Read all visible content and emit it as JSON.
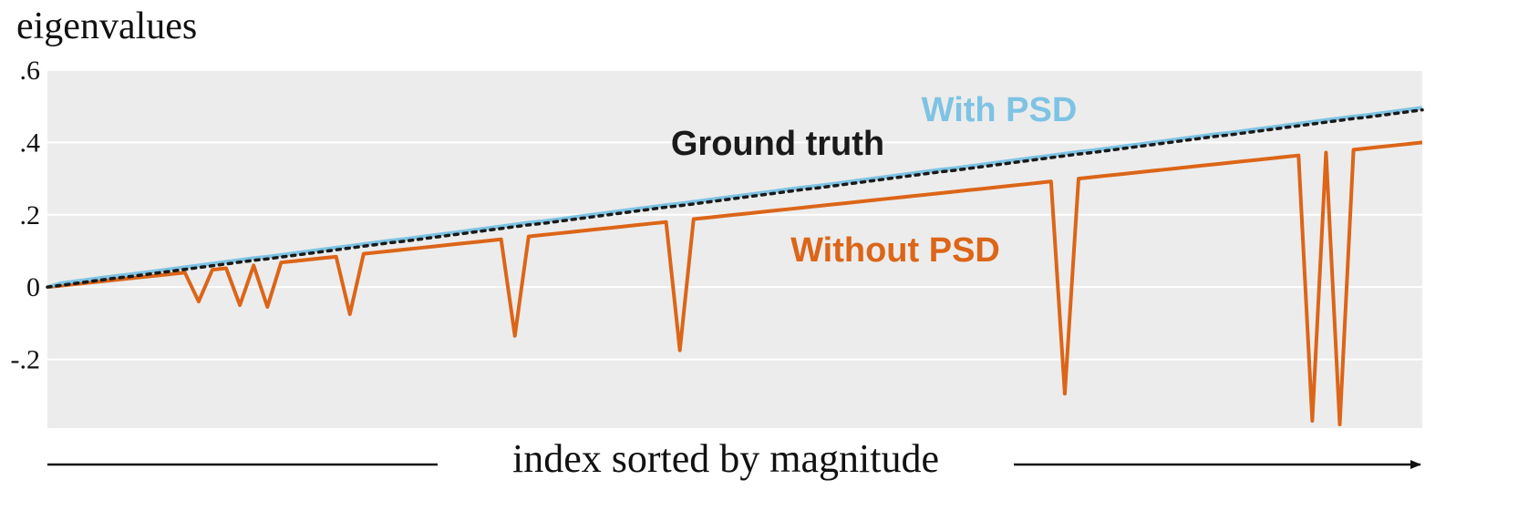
{
  "chart_data": {
    "type": "line",
    "ylabel": "eigenvalues",
    "xlabel": "index sorted by magnitude",
    "ylim": [
      -0.39,
      0.6
    ],
    "yticks": [
      {
        "value": 0.6,
        "label": ".6"
      },
      {
        "value": 0.4,
        "label": ".4"
      },
      {
        "value": 0.2,
        "label": ".2"
      },
      0,
      {
        "value": -0.2,
        "label": "-.2"
      }
    ],
    "grid": true,
    "series": [
      {
        "name": "Without PSD",
        "color": "#dc6518",
        "line_style": "solid",
        "values": [
          0,
          0.004,
          0.008,
          0.012,
          0.016,
          0.02,
          0.024,
          0.028,
          0.032,
          0.036,
          0.04,
          -0.04,
          0.048,
          0.052,
          -0.05,
          0.06,
          -0.055,
          0.068,
          0.072,
          0.076,
          0.08,
          0.084,
          -0.075,
          0.092,
          0.096,
          0.1,
          0.104,
          0.108,
          0.112,
          0.116,
          0.12,
          0.124,
          0.128,
          0.132,
          -0.135,
          0.14,
          0.144,
          0.148,
          0.152,
          0.156,
          0.16,
          0.164,
          0.168,
          0.172,
          0.176,
          0.18,
          -0.175,
          0.188,
          0.192,
          0.196,
          0.2,
          0.204,
          0.208,
          0.212,
          0.216,
          0.22,
          0.224,
          0.228,
          0.232,
          0.236,
          0.24,
          0.244,
          0.248,
          0.252,
          0.256,
          0.26,
          0.264,
          0.268,
          0.272,
          0.276,
          0.28,
          0.284,
          0.288,
          0.292,
          -0.295,
          0.3,
          0.304,
          0.308,
          0.312,
          0.316,
          0.32,
          0.324,
          0.328,
          0.332,
          0.336,
          0.34,
          0.344,
          0.348,
          0.352,
          0.356,
          0.36,
          0.364,
          -0.37,
          0.372,
          -0.38,
          0.38,
          0.384,
          0.388,
          0.392,
          0.396,
          0.4
        ]
      },
      {
        "name": "With PSD",
        "color": "#7ec3e3",
        "line_style": "solid",
        "values": [
          0,
          0.011,
          0.016,
          0.021,
          0.026,
          0.031,
          0.035,
          0.04,
          0.045,
          0.05,
          0.055,
          0.06,
          0.065,
          0.07,
          0.075,
          0.08,
          0.084,
          0.089,
          0.094,
          0.099,
          0.104,
          0.109,
          0.114,
          0.119,
          0.124,
          0.129,
          0.133,
          0.138,
          0.143,
          0.148,
          0.153,
          0.158,
          0.163,
          0.168,
          0.173,
          0.178,
          0.182,
          0.187,
          0.192,
          0.197,
          0.202,
          0.207,
          0.212,
          0.217,
          0.222,
          0.227,
          0.231,
          0.236,
          0.241,
          0.246,
          0.251,
          0.256,
          0.261,
          0.266,
          0.271,
          0.276,
          0.28,
          0.285,
          0.29,
          0.295,
          0.3,
          0.305,
          0.31,
          0.315,
          0.32,
          0.325,
          0.329,
          0.334,
          0.339,
          0.344,
          0.349,
          0.354,
          0.359,
          0.364,
          0.369,
          0.374,
          0.378,
          0.383,
          0.388,
          0.393,
          0.398,
          0.403,
          0.408,
          0.413,
          0.418,
          0.423,
          0.427,
          0.432,
          0.437,
          0.442,
          0.447,
          0.452,
          0.457,
          0.462,
          0.467,
          0.472,
          0.476,
          0.481,
          0.486,
          0.491,
          0.496
        ]
      },
      {
        "name": "Ground truth",
        "color": "#1a1a1a",
        "line_style": "dotted",
        "values": [
          0,
          0.005,
          0.01,
          0.015,
          0.02,
          0.025,
          0.029,
          0.034,
          0.039,
          0.044,
          0.049,
          0.054,
          0.059,
          0.064,
          0.069,
          0.074,
          0.078,
          0.083,
          0.088,
          0.093,
          0.098,
          0.103,
          0.108,
          0.113,
          0.118,
          0.123,
          0.127,
          0.132,
          0.137,
          0.142,
          0.147,
          0.152,
          0.157,
          0.162,
          0.167,
          0.172,
          0.176,
          0.181,
          0.186,
          0.191,
          0.196,
          0.201,
          0.206,
          0.211,
          0.216,
          0.221,
          0.225,
          0.23,
          0.235,
          0.24,
          0.245,
          0.25,
          0.255,
          0.26,
          0.265,
          0.27,
          0.274,
          0.279,
          0.284,
          0.289,
          0.294,
          0.299,
          0.304,
          0.309,
          0.314,
          0.319,
          0.323,
          0.328,
          0.333,
          0.338,
          0.343,
          0.348,
          0.353,
          0.358,
          0.363,
          0.368,
          0.372,
          0.377,
          0.382,
          0.387,
          0.392,
          0.397,
          0.402,
          0.407,
          0.412,
          0.417,
          0.421,
          0.426,
          0.431,
          0.436,
          0.441,
          0.446,
          0.451,
          0.456,
          0.461,
          0.466,
          0.47,
          0.475,
          0.48,
          0.485,
          0.49
        ]
      }
    ]
  }
}
